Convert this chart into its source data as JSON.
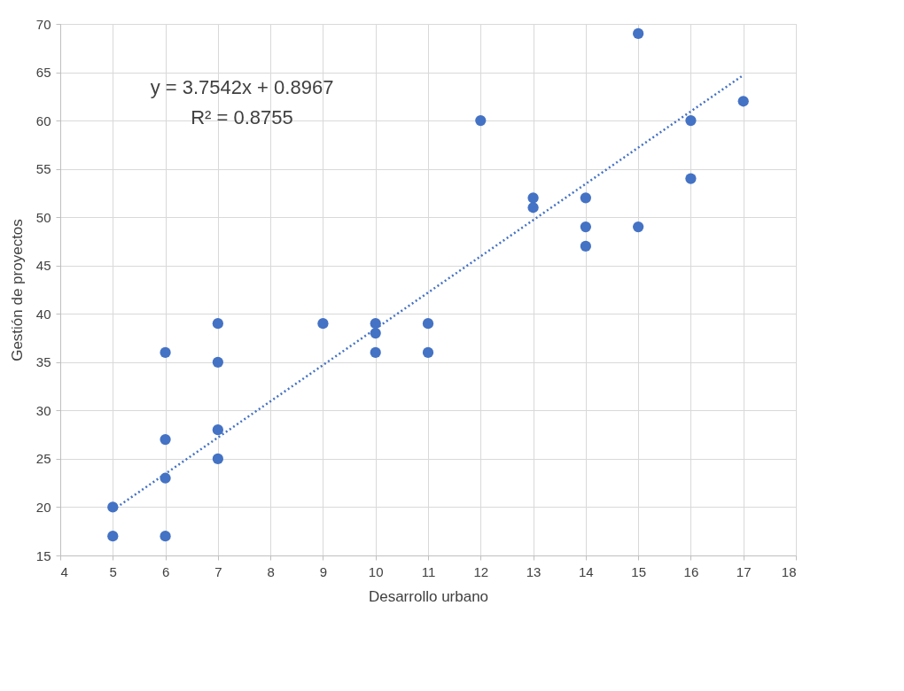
{
  "chart_data": {
    "type": "scatter",
    "xlabel": "Desarrollo urbano",
    "ylabel": "Gestión de proyectos",
    "xlim": [
      4,
      18
    ],
    "xticks": [
      4,
      5,
      6,
      7,
      8,
      9,
      10,
      11,
      12,
      13,
      14,
      15,
      16,
      17,
      18
    ],
    "ylim": [
      15,
      70
    ],
    "yticks": [
      15,
      20,
      25,
      30,
      35,
      40,
      45,
      50,
      55,
      60,
      65,
      70
    ],
    "grid": true,
    "series": [
      {
        "marker": "circle",
        "color": "#4472c4",
        "x": [
          5,
          5,
          6,
          6,
          6,
          6,
          7,
          7,
          7,
          7,
          9,
          10,
          10,
          10,
          11,
          11,
          12,
          13,
          13,
          14,
          14,
          14,
          15,
          15,
          16,
          16,
          17
        ],
        "values": [
          20,
          17,
          36,
          27,
          23,
          17,
          39,
          35,
          28,
          25,
          39,
          39,
          38,
          36,
          39,
          36,
          60,
          52,
          51,
          52,
          49,
          47,
          69,
          49,
          60,
          54,
          62
        ]
      },
      {
        "type": "line",
        "color": "#4472c4",
        "line_style": "dotted",
        "x": [
          5,
          17
        ],
        "values": [
          19.7,
          64.7
        ]
      }
    ],
    "annotations": [
      "y = 3.7542x + 0.8967",
      "R² = 0.8755"
    ]
  }
}
